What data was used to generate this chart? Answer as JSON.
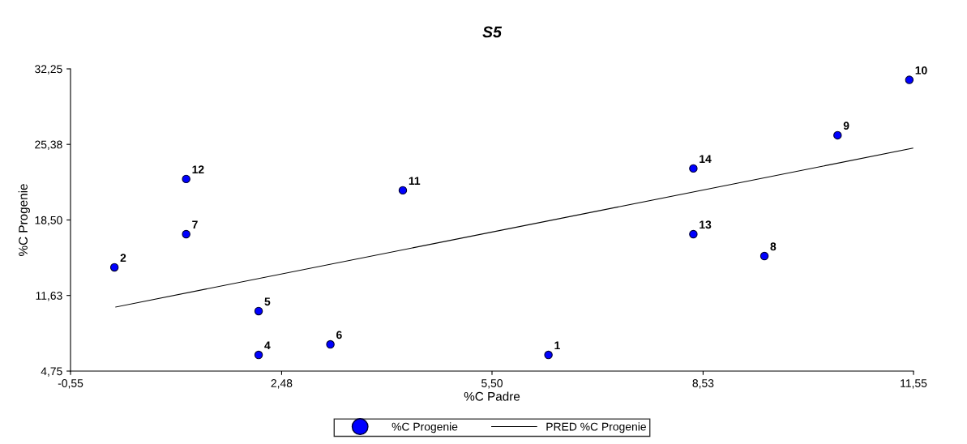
{
  "chart_data": {
    "type": "scatter",
    "title": "S5",
    "xlabel": "%C Padre",
    "ylabel": "%C Progenie",
    "xlim": [
      -0.55,
      11.55
    ],
    "xticks": [
      {
        "value": -0.55,
        "label": "-0,55"
      },
      {
        "value": 2.48,
        "label": "2,48"
      },
      {
        "value": 5.5,
        "label": "5,50"
      },
      {
        "value": 8.53,
        "label": "8,53"
      },
      {
        "value": 11.55,
        "label": "11,55"
      }
    ],
    "ylim": [
      4.75,
      32.25
    ],
    "yticks": [
      {
        "value": 4.75,
        "label": "4,75"
      },
      {
        "value": 11.63,
        "label": "11,63"
      },
      {
        "value": 18.5,
        "label": "18,50"
      },
      {
        "value": 25.38,
        "label": "25,38"
      },
      {
        "value": 32.25,
        "label": "32,25"
      }
    ],
    "grid": false,
    "legend": "bottom",
    "series": [
      {
        "name": "%C Progenie",
        "color": "#0000ff",
        "marker": "circle",
        "x": [
          6.31,
          0.08,
          2.15,
          2.15,
          3.18,
          1.11,
          9.41,
          10.46,
          11.49,
          4.22,
          1.11,
          8.39,
          8.39
        ],
        "values": [
          6.22,
          14.19,
          6.22,
          10.21,
          7.18,
          17.21,
          15.22,
          26.21,
          31.25,
          21.2,
          22.23,
          17.21,
          23.19
        ]
      },
      {
        "name": "PRED %C Progenie",
        "type": "line",
        "color": "#000000",
        "line_style": "solid",
        "x": [
          0.1,
          11.54
        ],
        "values": [
          10.58,
          25.03
        ]
      }
    ],
    "annotations": [
      {
        "text": "1",
        "x": 6.31,
        "y": 6.22
      },
      {
        "text": "2",
        "x": 0.08,
        "y": 14.19
      },
      {
        "text": "4",
        "x": 2.15,
        "y": 6.22
      },
      {
        "text": "5",
        "x": 2.15,
        "y": 10.21
      },
      {
        "text": "6",
        "x": 3.18,
        "y": 7.18
      },
      {
        "text": "7",
        "x": 1.11,
        "y": 17.21
      },
      {
        "text": "8",
        "x": 9.41,
        "y": 15.22
      },
      {
        "text": "9",
        "x": 10.46,
        "y": 26.21
      },
      {
        "text": "10",
        "x": 11.49,
        "y": 31.25
      },
      {
        "text": "11",
        "x": 4.22,
        "y": 21.2
      },
      {
        "text": "12",
        "x": 1.11,
        "y": 22.23
      },
      {
        "text": "13",
        "x": 8.39,
        "y": 17.21
      },
      {
        "text": "14",
        "x": 8.39,
        "y": 23.19
      }
    ]
  }
}
